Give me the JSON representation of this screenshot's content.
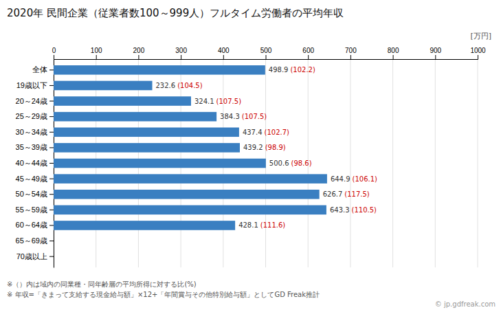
{
  "chart_data": {
    "type": "bar",
    "orientation": "horizontal",
    "title": "2020年 民間企業（従業者数100～999人）フルタイム労働者の平均年収",
    "xlabel": "[万円]",
    "categories": [
      "全体",
      "19歳以下",
      "20～24歳",
      "25～29歳",
      "30～34歳",
      "35～39歳",
      "40～44歳",
      "45～49歳",
      "50～54歳",
      "55～59歳",
      "60～64歳",
      "65～69歳",
      "70歳以上"
    ],
    "values": [
      498.9,
      232.6,
      324.1,
      384.3,
      437.4,
      439.2,
      500.6,
      644.9,
      626.7,
      643.3,
      428.1,
      0,
      0
    ],
    "value_labels": [
      "498.9",
      "232.6",
      "324.1",
      "384.3",
      "437.4",
      "439.2",
      "500.6",
      "644.9",
      "626.7",
      "643.3",
      "428.1",
      null,
      null
    ],
    "ratios": [
      102.2,
      104.5,
      107.5,
      107.5,
      102.7,
      98.9,
      98.6,
      106.1,
      117.5,
      110.5,
      111.6,
      null,
      null
    ],
    "ratio_labels": [
      "(102.2)",
      "(104.5)",
      "(107.5)",
      "(107.5)",
      "(102.7)",
      "(98.9)",
      "(98.6)",
      "(106.1)",
      "(117.5)",
      "(110.5)",
      "(111.6)",
      null,
      null
    ],
    "color": "#3a7fc1",
    "xlim": [
      0,
      1000
    ],
    "xticks": [
      0,
      100,
      200,
      300,
      400,
      500,
      600,
      700,
      800,
      900,
      1000
    ],
    "grid": true,
    "data_labels": true,
    "annotations": [
      "※（）内は域内の同業種・同年齢層の平均所得に対する比(%)",
      "※ 年収=「きまって支給する現金給与額」×12+「年間賞与その他特別給与額」としてGD Freak推計",
      "© jp.gdfreak.com"
    ]
  }
}
